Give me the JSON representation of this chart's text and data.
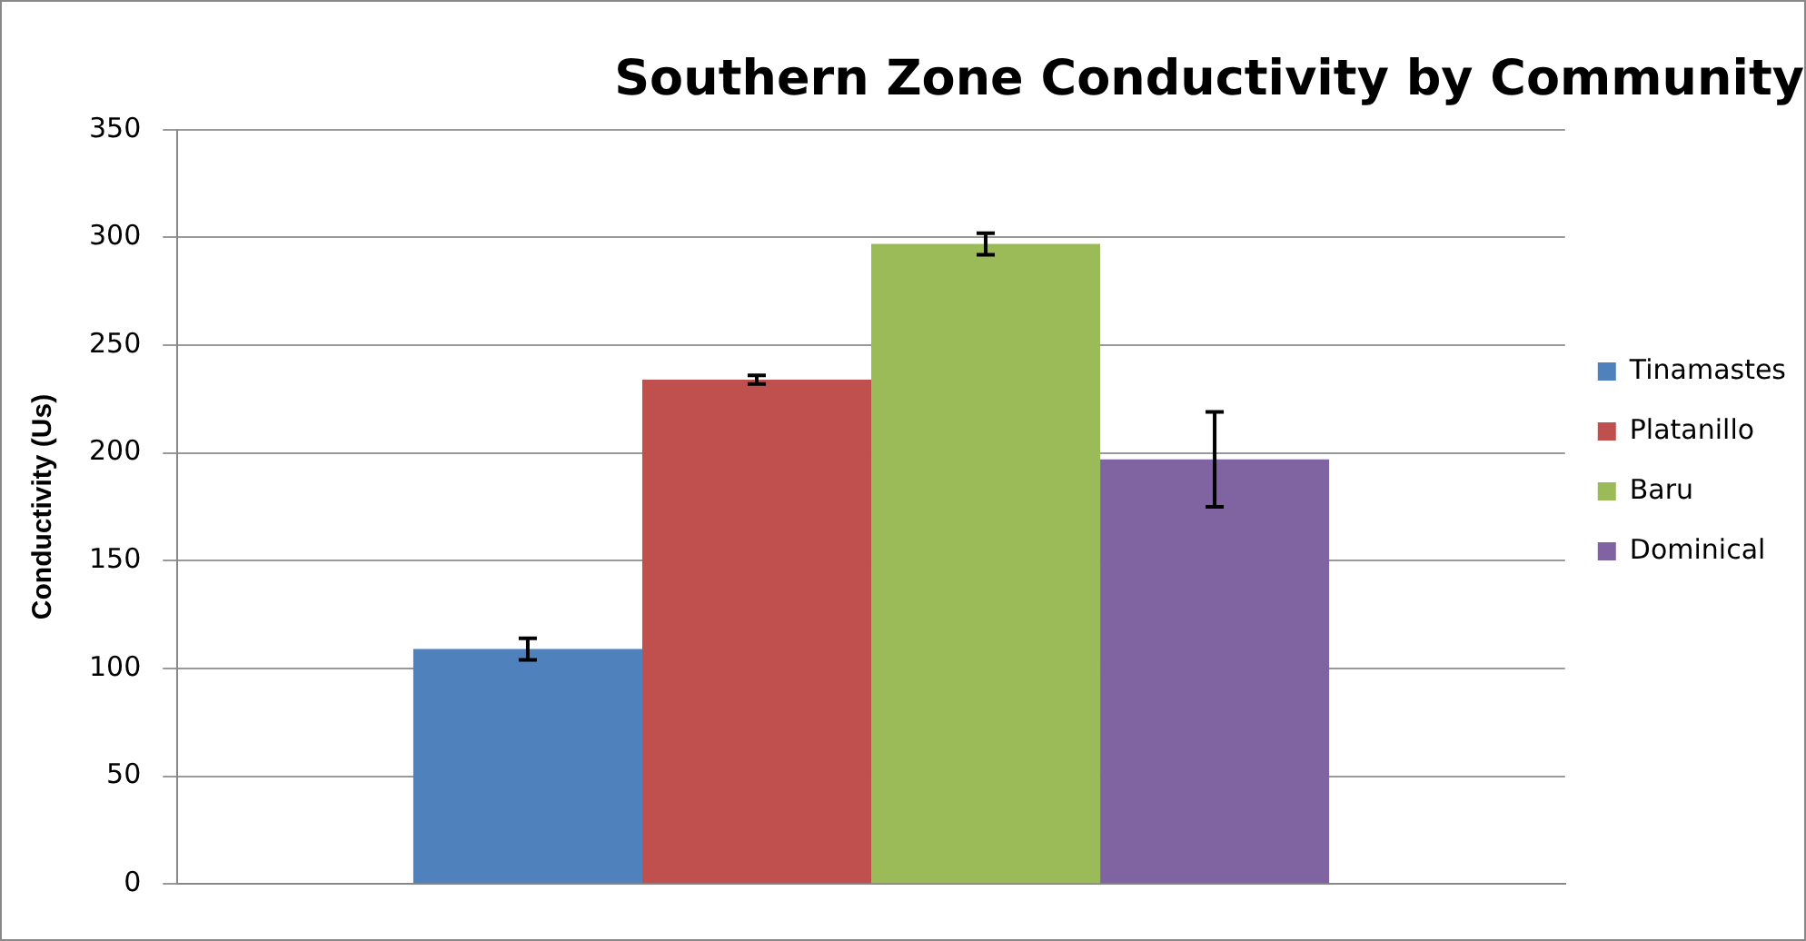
{
  "chart_data": {
    "type": "bar",
    "title": "Southern Zone Conductivity by Community",
    "ylabel": "Conductivity (Us)",
    "categories": [
      null
    ],
    "series": [
      {
        "name": "Tinamastes",
        "color": "#4f81bd",
        "values": [
          109
        ],
        "errors": [
          5
        ]
      },
      {
        "name": "Platanillo",
        "color": "#c0504d",
        "values": [
          234
        ],
        "errors": [
          2
        ]
      },
      {
        "name": "Baru",
        "color": "#9bbb59",
        "values": [
          297
        ],
        "errors": [
          5
        ]
      },
      {
        "name": "Dominical",
        "color": "#8064a2",
        "values": [
          197
        ],
        "errors": [
          22
        ]
      }
    ],
    "ylim": [
      0,
      350
    ],
    "yticks": [
      0,
      50,
      100,
      150,
      200,
      250,
      300,
      350
    ],
    "grid": "y",
    "legend": "right"
  }
}
